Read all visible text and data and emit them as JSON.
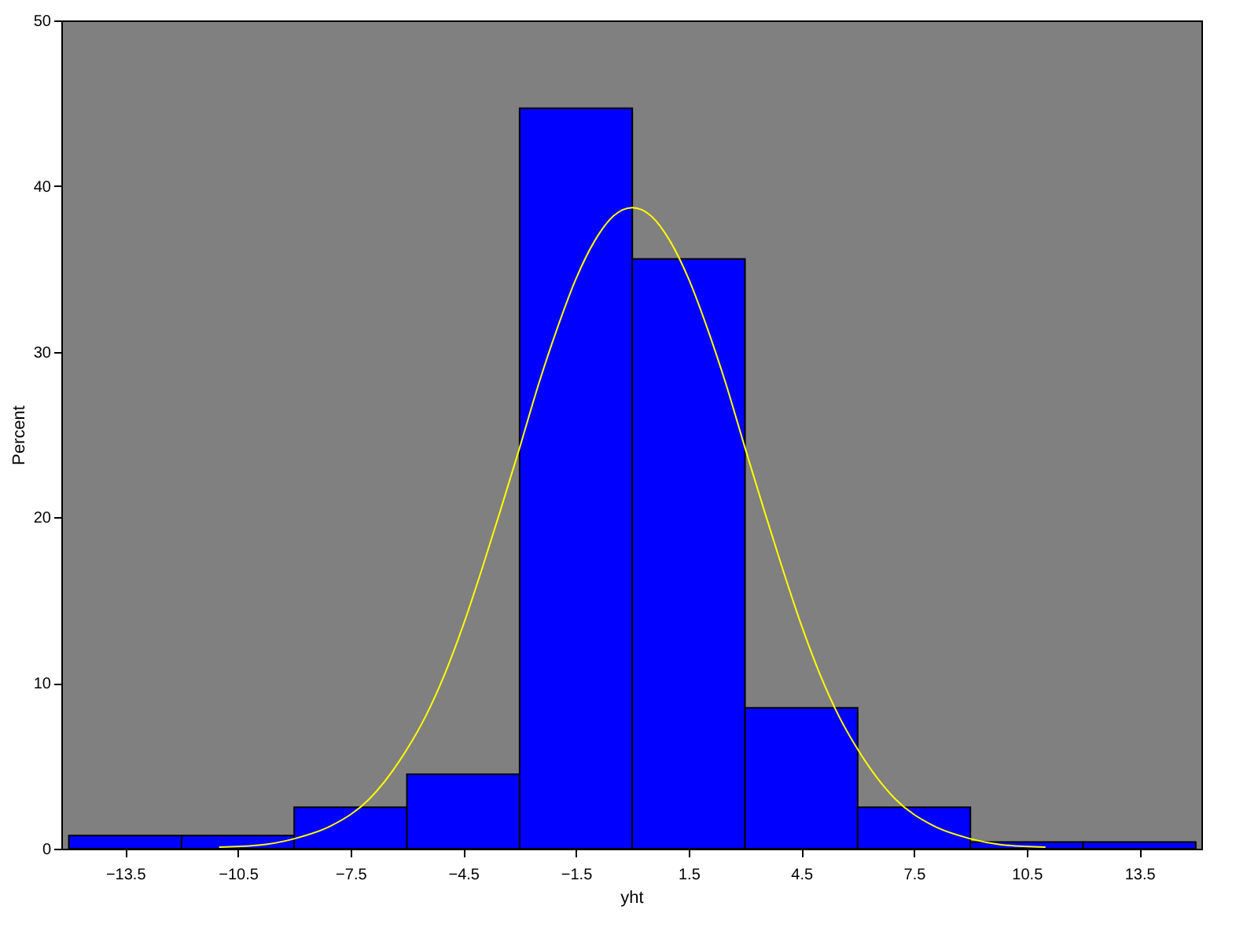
{
  "chart_data": {
    "type": "histogram",
    "xlabel": "yht",
    "ylabel": "Percent",
    "bins": [
      -15,
      -12,
      -9,
      -6,
      -3,
      0,
      3,
      6,
      9,
      12,
      15
    ],
    "values": [
      0.8,
      0.8,
      2.5,
      4.5,
      44.7,
      35.6,
      8.5,
      2.5,
      0.4,
      0.4
    ],
    "color": "#0000ff",
    "series": [
      {
        "type": "line",
        "color": "#ffff00",
        "x": [
          -11,
          -10,
          -9,
          -8,
          -7,
          -6,
          -5.5,
          -5,
          -4.5,
          -4,
          -3.5,
          -3,
          -2.5,
          -2,
          -1.5,
          -1,
          -0.5,
          0,
          0.5,
          1,
          1.5,
          2,
          2.5,
          3,
          3.5,
          4,
          4.5,
          5,
          5.5,
          6,
          7,
          8,
          9,
          10,
          11
        ],
        "values": [
          0.1,
          0.2,
          0.6,
          1.4,
          3.0,
          6.0,
          8.0,
          10.5,
          13.5,
          16.9,
          20.5,
          24.2,
          28.0,
          31.4,
          34.4,
          36.7,
          38.2,
          38.7,
          38.2,
          36.7,
          34.4,
          31.4,
          28.0,
          24.2,
          20.5,
          16.9,
          13.5,
          10.5,
          8.0,
          6.0,
          3.0,
          1.4,
          0.6,
          0.2,
          0.1
        ]
      }
    ],
    "xlim": [
      -15.2,
      15.15
    ],
    "xticks": [
      -13.5,
      -10.5,
      -7.5,
      -4.5,
      -1.5,
      1.5,
      4.5,
      7.5,
      10.5,
      13.5
    ],
    "ylim": [
      0,
      50
    ],
    "yticks": [
      0,
      10,
      20,
      30,
      40,
      50
    ],
    "grid": false
  }
}
